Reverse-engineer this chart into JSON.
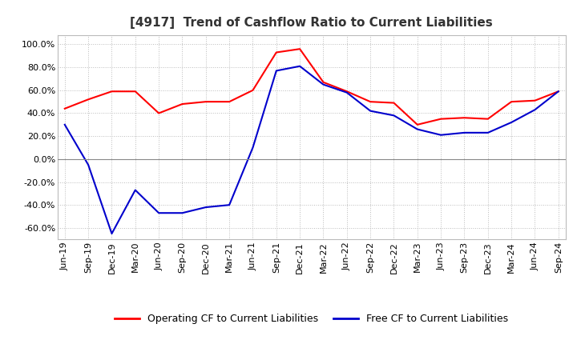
{
  "title": "[4917]  Trend of Cashflow Ratio to Current Liabilities",
  "x_labels": [
    "Jun-19",
    "Sep-19",
    "Dec-19",
    "Mar-20",
    "Jun-20",
    "Sep-20",
    "Dec-20",
    "Mar-21",
    "Jun-21",
    "Sep-21",
    "Dec-21",
    "Mar-22",
    "Jun-22",
    "Sep-22",
    "Dec-22",
    "Mar-23",
    "Jun-23",
    "Sep-23",
    "Dec-23",
    "Mar-24",
    "Jun-24",
    "Sep-24"
  ],
  "operating_cf": [
    44,
    52,
    59,
    59,
    40,
    48,
    50,
    50,
    60,
    93,
    96,
    67,
    59,
    50,
    49,
    30,
    35,
    36,
    35,
    50,
    51,
    59
  ],
  "free_cf": [
    30,
    -5,
    -65,
    -27,
    -47,
    -47,
    -42,
    -40,
    10,
    77,
    81,
    65,
    58,
    42,
    38,
    26,
    21,
    23,
    23,
    32,
    43,
    59
  ],
  "ylim": [
    -70,
    108
  ],
  "yticks": [
    -60,
    -40,
    -20,
    0,
    20,
    40,
    60,
    80,
    100
  ],
  "operating_color": "#ff0000",
  "free_color": "#0000cc",
  "legend_labels": [
    "Operating CF to Current Liabilities",
    "Free CF to Current Liabilities"
  ],
  "background_color": "#ffffff",
  "grid_color": "#bbbbbb",
  "title_fontsize": 11,
  "axis_fontsize": 8
}
